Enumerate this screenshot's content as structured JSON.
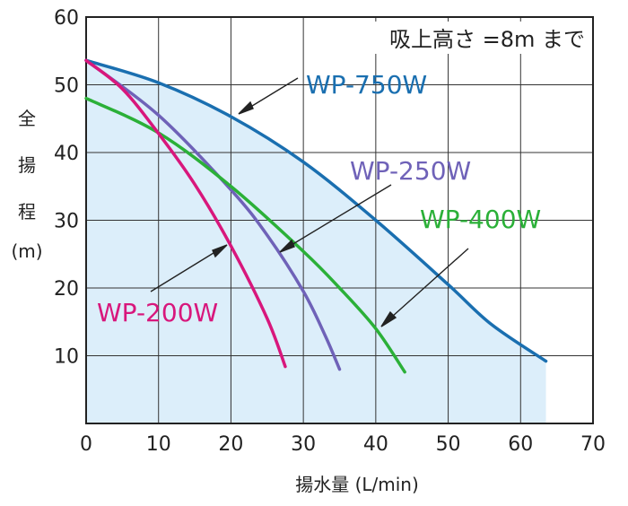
{
  "chart_data": {
    "type": "line",
    "xlabel": "揚水量 (L/min)",
    "ylabel": [
      "全",
      "揚",
      "程",
      "(m)"
    ],
    "annotation": "吸上高さ =8m まで",
    "xlim": [
      0,
      70
    ],
    "ylim": [
      0,
      60
    ],
    "xticks": [
      0,
      10,
      20,
      30,
      40,
      50,
      60,
      70
    ],
    "yticks": [
      10,
      20,
      30,
      40,
      50,
      60
    ],
    "grid": true,
    "shaded_region": "area under WP-750W curve (light blue)",
    "series": [
      {
        "name": "WP-750W",
        "color": "#1a6fb0",
        "points": [
          [
            0,
            53.6
          ],
          [
            10,
            50.3
          ],
          [
            20,
            45.3
          ],
          [
            30,
            38.6
          ],
          [
            40,
            30.0
          ],
          [
            50,
            20.5
          ],
          [
            56,
            14.6
          ],
          [
            63.5,
            9.2
          ]
        ]
      },
      {
        "name": "WP-250W",
        "color": "#6f62b8",
        "points": [
          [
            0,
            53.6
          ],
          [
            10,
            45.5
          ],
          [
            20,
            34.5
          ],
          [
            25,
            27.8
          ],
          [
            30,
            19.5
          ],
          [
            33,
            13.0
          ],
          [
            35,
            8.0
          ]
        ]
      },
      {
        "name": "WP-400W",
        "color": "#2bb038",
        "points": [
          [
            0,
            48.0
          ],
          [
            10,
            42.9
          ],
          [
            20,
            35.0
          ],
          [
            30,
            25.4
          ],
          [
            35,
            20.0
          ],
          [
            40,
            14.0
          ],
          [
            44,
            7.6
          ]
        ]
      },
      {
        "name": "WP-200W",
        "color": "#d8177c",
        "points": [
          [
            0,
            53.6
          ],
          [
            5,
            49.4
          ],
          [
            10,
            42.8
          ],
          [
            15,
            35.3
          ],
          [
            20,
            26.2
          ],
          [
            25,
            15.5
          ],
          [
            27.5,
            8.4
          ]
        ]
      }
    ]
  }
}
